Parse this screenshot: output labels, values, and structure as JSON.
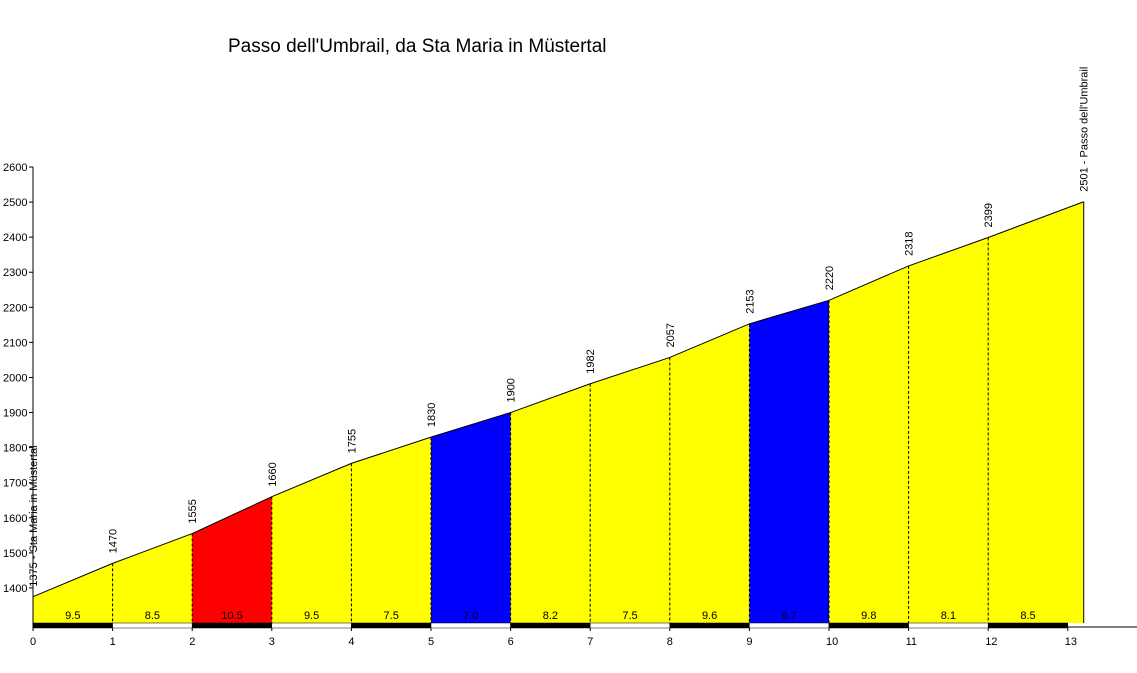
{
  "chart_data": {
    "type": "area",
    "title": "Passo dell'Umbrail, da Sta Maria in Müstertal",
    "xlabel": "",
    "ylabel": "",
    "xlim": [
      0,
      13.8
    ],
    "ylim": [
      1300,
      2600
    ],
    "x_ticks": [
      "0",
      "1",
      "2",
      "3",
      "4",
      "5",
      "6",
      "7",
      "8",
      "9",
      "10",
      "11",
      "12",
      "13"
    ],
    "y_ticks": [
      "1400",
      "1500",
      "1600",
      "1700",
      "1800",
      "1900",
      "2000",
      "2100",
      "2200",
      "2300",
      "2400",
      "2500",
      "2600"
    ],
    "profile_x": [
      0,
      1,
      2,
      3,
      4,
      5,
      6,
      7,
      8,
      9,
      10,
      11,
      12,
      13.2
    ],
    "profile_y": [
      1375,
      1470,
      1555,
      1660,
      1755,
      1830,
      1900,
      1982,
      2057,
      2153,
      2220,
      2318,
      2399,
      2501
    ],
    "point_labels": [
      "1375 - Sta Maria in Müstertal",
      "1470",
      "1555",
      "1660",
      "1755",
      "1830",
      "1900",
      "1982",
      "2057",
      "2153",
      "2220",
      "2318",
      "2399",
      "2501 - Passo dell'Umbrail"
    ],
    "segments": [
      {
        "grade": "9.5",
        "color": "#ffff00"
      },
      {
        "grade": "8.5",
        "color": "#ffff00"
      },
      {
        "grade": "10.5",
        "color": "#ff0000"
      },
      {
        "grade": "9.5",
        "color": "#ffff00"
      },
      {
        "grade": "7.5",
        "color": "#ffff00"
      },
      {
        "grade": "7.0",
        "color": "#0000ff"
      },
      {
        "grade": "8.2",
        "color": "#ffff00"
      },
      {
        "grade": "7.5",
        "color": "#ffff00"
      },
      {
        "grade": "9.6",
        "color": "#ffff00"
      },
      {
        "grade": "6.7",
        "color": "#0000ff"
      },
      {
        "grade": "9.8",
        "color": "#ffff00"
      },
      {
        "grade": "8.1",
        "color": "#ffff00"
      },
      {
        "grade": "8.5",
        "color": "#ffff00"
      }
    ],
    "grid": false,
    "legend": "none"
  }
}
